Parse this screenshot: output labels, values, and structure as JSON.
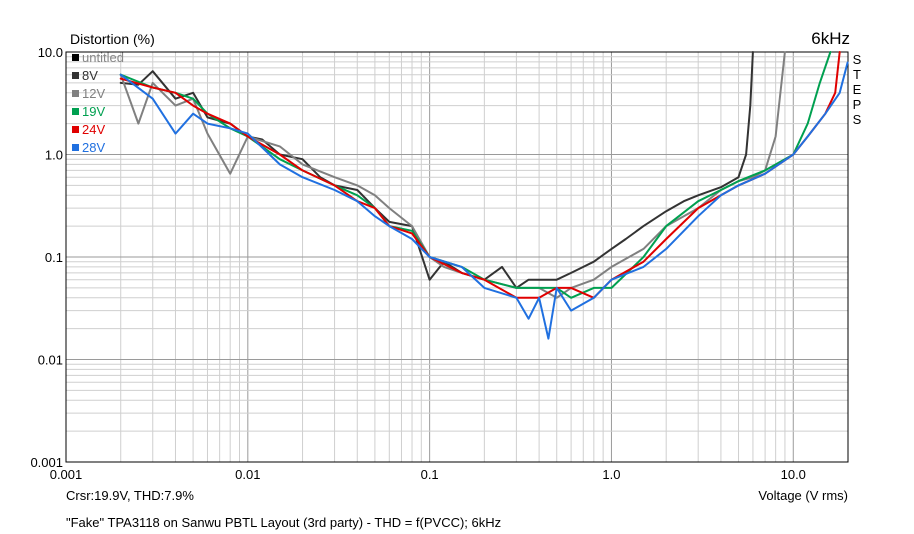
{
  "header": {
    "ylabel": "Distortion (%)",
    "frequency": "6kHz",
    "steps_label": [
      "S",
      "T",
      "E",
      "P",
      "S"
    ]
  },
  "footer": {
    "cursor_readout": "Crsr:19.9V, THD:7.9%",
    "xlabel": "Voltage (V rms)",
    "caption": "\"Fake\" TPA3118 on Sanwu PBTL Layout (3rd party) - THD = f(PVCC); 6kHz"
  },
  "chart_data": {
    "type": "line",
    "title": "",
    "xlabel": "Voltage (V rms)",
    "ylabel": "Distortion (%)",
    "xscale": "log",
    "yscale": "log",
    "xlim": [
      0.001,
      20
    ],
    "ylim": [
      0.001,
      10
    ],
    "grid": true,
    "legend_position": "top-left",
    "x_ticks": [
      {
        "value": 0.001,
        "label": "0.001"
      },
      {
        "value": 0.01,
        "label": "0.01"
      },
      {
        "value": 0.1,
        "label": "0.1"
      },
      {
        "value": 1,
        "label": "1.0"
      },
      {
        "value": 10,
        "label": "10.0"
      }
    ],
    "y_ticks": [
      {
        "value": 0.001,
        "label": "0.001"
      },
      {
        "value": 0.01,
        "label": "0.01"
      },
      {
        "value": 0.1,
        "label": "0.1"
      },
      {
        "value": 1,
        "label": "1.0"
      },
      {
        "value": 10,
        "label": "10.0"
      }
    ],
    "series": [
      {
        "name": "untitled",
        "color": "#000000",
        "x": [],
        "y": []
      },
      {
        "name": "8V",
        "color": "#333333",
        "x": [
          0.002,
          0.0025,
          0.003,
          0.004,
          0.005,
          0.006,
          0.008,
          0.01,
          0.012,
          0.015,
          0.02,
          0.025,
          0.03,
          0.04,
          0.05,
          0.06,
          0.08,
          0.1,
          0.12,
          0.15,
          0.2,
          0.25,
          0.3,
          0.35,
          0.4,
          0.5,
          0.6,
          0.7,
          0.8,
          1.0,
          1.2,
          1.5,
          2.0,
          2.5,
          3.0,
          4.0,
          5.0,
          5.5,
          5.8,
          6.0
        ],
        "y": [
          5.0,
          4.8,
          6.5,
          3.5,
          4.0,
          2.3,
          2.0,
          1.5,
          1.4,
          1.0,
          0.9,
          0.6,
          0.5,
          0.45,
          0.3,
          0.22,
          0.2,
          0.06,
          0.09,
          0.07,
          0.06,
          0.08,
          0.05,
          0.06,
          0.06,
          0.06,
          0.07,
          0.08,
          0.09,
          0.12,
          0.15,
          0.2,
          0.28,
          0.35,
          0.4,
          0.48,
          0.6,
          1.0,
          3.0,
          10.0
        ]
      },
      {
        "name": "12V",
        "color": "#808080",
        "x": [
          0.002,
          0.0025,
          0.003,
          0.004,
          0.005,
          0.006,
          0.008,
          0.01,
          0.015,
          0.02,
          0.03,
          0.04,
          0.05,
          0.06,
          0.08,
          0.1,
          0.12,
          0.15,
          0.2,
          0.3,
          0.4,
          0.5,
          0.6,
          0.8,
          1.0,
          1.5,
          2.0,
          3.0,
          4.0,
          5.0,
          6.0,
          7.0,
          8.0,
          8.5,
          9.0
        ],
        "y": [
          6.0,
          2.0,
          5.0,
          3.0,
          3.5,
          1.6,
          0.65,
          1.5,
          1.2,
          0.8,
          0.6,
          0.5,
          0.4,
          0.3,
          0.2,
          0.1,
          0.08,
          0.07,
          0.06,
          0.05,
          0.05,
          0.04,
          0.05,
          0.06,
          0.08,
          0.12,
          0.2,
          0.3,
          0.45,
          0.55,
          0.6,
          0.7,
          1.5,
          4.0,
          10.0
        ]
      },
      {
        "name": "19V",
        "color": "#00a050",
        "x": [
          0.002,
          0.003,
          0.004,
          0.005,
          0.006,
          0.008,
          0.01,
          0.015,
          0.02,
          0.03,
          0.04,
          0.05,
          0.06,
          0.08,
          0.1,
          0.15,
          0.2,
          0.3,
          0.4,
          0.5,
          0.6,
          0.8,
          1.0,
          1.5,
          2.0,
          3.0,
          4.0,
          5.0,
          7.0,
          10.0,
          12.0,
          14.0,
          16.0
        ],
        "y": [
          6.0,
          4.5,
          4.0,
          3.5,
          2.5,
          1.8,
          1.5,
          0.9,
          0.7,
          0.5,
          0.4,
          0.3,
          0.2,
          0.18,
          0.1,
          0.08,
          0.06,
          0.05,
          0.05,
          0.05,
          0.04,
          0.05,
          0.05,
          0.1,
          0.2,
          0.35,
          0.45,
          0.55,
          0.7,
          1.0,
          2.0,
          5.0,
          10.0
        ]
      },
      {
        "name": "24V",
        "color": "#e00000",
        "x": [
          0.002,
          0.003,
          0.004,
          0.005,
          0.006,
          0.008,
          0.01,
          0.015,
          0.02,
          0.03,
          0.04,
          0.05,
          0.06,
          0.08,
          0.1,
          0.15,
          0.2,
          0.3,
          0.4,
          0.5,
          0.6,
          0.8,
          1.0,
          1.5,
          2.0,
          3.0,
          4.0,
          5.0,
          7.0,
          10.0,
          12.0,
          15.0,
          17.0,
          18.0
        ],
        "y": [
          5.5,
          4.5,
          4.0,
          3.0,
          2.5,
          2.0,
          1.5,
          1.0,
          0.7,
          0.5,
          0.35,
          0.3,
          0.2,
          0.17,
          0.1,
          0.07,
          0.06,
          0.04,
          0.04,
          0.05,
          0.05,
          0.04,
          0.06,
          0.09,
          0.15,
          0.3,
          0.4,
          0.5,
          0.65,
          1.0,
          1.5,
          2.5,
          4.0,
          10.0
        ]
      },
      {
        "name": "28V",
        "color": "#2070e0",
        "x": [
          0.002,
          0.003,
          0.004,
          0.005,
          0.006,
          0.008,
          0.01,
          0.015,
          0.02,
          0.03,
          0.04,
          0.05,
          0.06,
          0.08,
          0.1,
          0.15,
          0.2,
          0.3,
          0.35,
          0.4,
          0.45,
          0.5,
          0.6,
          0.8,
          1.0,
          1.5,
          2.0,
          3.0,
          4.0,
          5.0,
          7.0,
          10.0,
          12.0,
          15.0,
          18.0,
          19.9
        ],
        "y": [
          6.0,
          3.5,
          1.6,
          2.5,
          2.0,
          1.8,
          1.6,
          0.8,
          0.6,
          0.45,
          0.35,
          0.25,
          0.2,
          0.15,
          0.1,
          0.08,
          0.05,
          0.04,
          0.025,
          0.04,
          0.016,
          0.05,
          0.03,
          0.04,
          0.06,
          0.08,
          0.12,
          0.25,
          0.4,
          0.5,
          0.65,
          1.0,
          1.5,
          2.5,
          4.0,
          7.9
        ]
      }
    ]
  }
}
